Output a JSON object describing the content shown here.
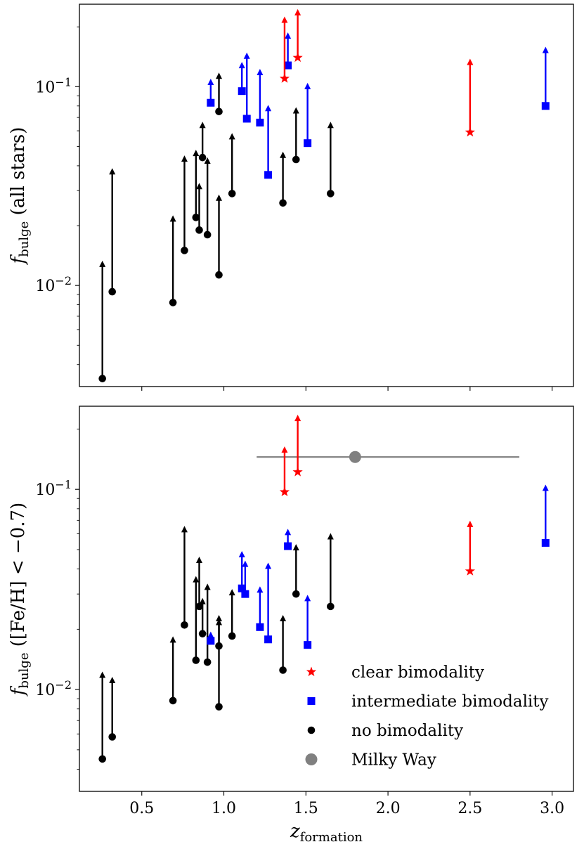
{
  "chart_data": [
    {
      "panel": "top",
      "type": "scatter",
      "title": "",
      "ylabel": {
        "main": "f",
        "sub": "bulge",
        "rest": " (all stars)"
      },
      "xlabel": "",
      "yscale": "log",
      "xlim": [
        0.12,
        3.13
      ],
      "ylim": [
        0.0031,
        0.26
      ],
      "yticks": [
        {
          "value": 0.01,
          "base": "10",
          "exp": "−2"
        },
        {
          "value": 0.1,
          "base": "10",
          "exp": "−1"
        }
      ],
      "show_xtick_labels": false,
      "series": [
        {
          "name": "clear bimodality",
          "color": "#ff0000",
          "marker": "star",
          "points": [
            {
              "x": 1.37,
              "y": 0.11,
              "upper": 0.22
            },
            {
              "x": 1.45,
              "y": 0.14,
              "upper": 0.24
            },
            {
              "x": 2.5,
              "y": 0.059,
              "upper": 0.135
            }
          ]
        },
        {
          "name": "intermediate bimodality",
          "color": "#0000ff",
          "marker": "square",
          "points": [
            {
              "x": 0.92,
              "y": 0.083,
              "upper": 0.107
            },
            {
              "x": 1.11,
              "y": 0.095,
              "upper": 0.13
            },
            {
              "x": 1.14,
              "y": 0.069,
              "upper": 0.145
            },
            {
              "x": 1.22,
              "y": 0.066,
              "upper": 0.12
            },
            {
              "x": 1.27,
              "y": 0.036,
              "upper": 0.079
            },
            {
              "x": 1.39,
              "y": 0.128,
              "upper": 0.183
            },
            {
              "x": 1.51,
              "y": 0.052,
              "upper": 0.102
            },
            {
              "x": 2.96,
              "y": 0.08,
              "upper": 0.155
            }
          ]
        },
        {
          "name": "no bimodality",
          "color": "#000000",
          "marker": "circle",
          "points": [
            {
              "x": 0.26,
              "y": 0.0034,
              "upper": 0.013
            },
            {
              "x": 0.32,
              "y": 0.0093,
              "upper": 0.038
            },
            {
              "x": 0.69,
              "y": 0.0082,
              "upper": 0.022
            },
            {
              "x": 0.76,
              "y": 0.015,
              "upper": 0.044
            },
            {
              "x": 0.83,
              "y": 0.022,
              "upper": 0.047
            },
            {
              "x": 0.85,
              "y": 0.019,
              "upper": 0.032
            },
            {
              "x": 0.87,
              "y": 0.044,
              "upper": 0.065
            },
            {
              "x": 0.9,
              "y": 0.018,
              "upper": 0.043
            },
            {
              "x": 0.97,
              "y": 0.075,
              "upper": 0.115
            },
            {
              "x": 0.97,
              "y": 0.0113,
              "upper": 0.028
            },
            {
              "x": 1.05,
              "y": 0.029,
              "upper": 0.057
            },
            {
              "x": 1.36,
              "y": 0.026,
              "upper": 0.046
            },
            {
              "x": 1.44,
              "y": 0.043,
              "upper": 0.077
            },
            {
              "x": 1.65,
              "y": 0.029,
              "upper": 0.065
            }
          ]
        }
      ]
    },
    {
      "panel": "bottom",
      "type": "scatter",
      "title": "",
      "ylabel": {
        "main": "f",
        "sub": "bulge",
        "rest": " ([Fe/H] < −0.7)"
      },
      "xlabel": {
        "main": "z",
        "sub": "formation"
      },
      "yscale": "log",
      "xlim": [
        0.12,
        3.13
      ],
      "ylim": [
        0.0031,
        0.26
      ],
      "xticks": [
        {
          "value": 0.5,
          "label": "0.5"
        },
        {
          "value": 1.0,
          "label": "1.0"
        },
        {
          "value": 1.5,
          "label": "1.5"
        },
        {
          "value": 2.0,
          "label": "2.0"
        },
        {
          "value": 2.5,
          "label": "2.5"
        },
        {
          "value": 3.0,
          "label": "3.0"
        }
      ],
      "yticks": [
        {
          "value": 0.01,
          "base": "10",
          "exp": "−2"
        },
        {
          "value": 0.1,
          "base": "10",
          "exp": "−1"
        }
      ],
      "legend": {
        "position": "lower-right",
        "entries": [
          {
            "label": "clear bimodality",
            "color": "#ff0000",
            "marker": "star"
          },
          {
            "label": "intermediate bimodality",
            "color": "#0000ff",
            "marker": "square"
          },
          {
            "label": "no bimodality",
            "color": "#000000",
            "marker": "circle"
          },
          {
            "label": "Milky Way",
            "color": "#808080",
            "marker": "bigcircle"
          }
        ]
      },
      "milky_way": {
        "name": "Milky Way",
        "color": "#808080",
        "x": 1.8,
        "y": 0.145,
        "xerr": [
          1.2,
          2.8
        ]
      },
      "series": [
        {
          "name": "clear bimodality",
          "color": "#ff0000",
          "marker": "star",
          "points": [
            {
              "x": 1.37,
              "y": 0.097,
              "upper": 0.16
            },
            {
              "x": 1.45,
              "y": 0.122,
              "upper": 0.23
            },
            {
              "x": 2.5,
              "y": 0.039,
              "upper": 0.068
            }
          ]
        },
        {
          "name": "intermediate bimodality",
          "color": "#0000ff",
          "marker": "square",
          "points": [
            {
              "x": 0.92,
              "y": 0.0175,
              "upper": 0.019
            },
            {
              "x": 1.11,
              "y": 0.032,
              "upper": 0.048
            },
            {
              "x": 1.13,
              "y": 0.03,
              "upper": 0.043
            },
            {
              "x": 1.22,
              "y": 0.0205,
              "upper": 0.032
            },
            {
              "x": 1.27,
              "y": 0.0178,
              "upper": 0.042
            },
            {
              "x": 1.39,
              "y": 0.052,
              "upper": 0.062
            },
            {
              "x": 1.51,
              "y": 0.0167,
              "upper": 0.029
            },
            {
              "x": 2.96,
              "y": 0.054,
              "upper": 0.103
            }
          ]
        },
        {
          "name": "no bimodality",
          "color": "#000000",
          "marker": "circle",
          "points": [
            {
              "x": 0.26,
              "y": 0.0045,
              "upper": 0.012
            },
            {
              "x": 0.32,
              "y": 0.0058,
              "upper": 0.0113
            },
            {
              "x": 0.69,
              "y": 0.0088,
              "upper": 0.018
            },
            {
              "x": 0.76,
              "y": 0.021,
              "upper": 0.064
            },
            {
              "x": 0.83,
              "y": 0.014,
              "upper": 0.036
            },
            {
              "x": 0.85,
              "y": 0.026,
              "upper": 0.045
            },
            {
              "x": 0.87,
              "y": 0.019,
              "upper": 0.028
            },
            {
              "x": 0.9,
              "y": 0.0137,
              "upper": 0.033
            },
            {
              "x": 0.97,
              "y": 0.0165,
              "upper": 0.023
            },
            {
              "x": 0.97,
              "y": 0.0082,
              "upper": 0.022
            },
            {
              "x": 1.05,
              "y": 0.0185,
              "upper": 0.031
            },
            {
              "x": 1.36,
              "y": 0.0125,
              "upper": 0.023
            },
            {
              "x": 1.44,
              "y": 0.03,
              "upper": 0.052
            },
            {
              "x": 1.65,
              "y": 0.026,
              "upper": 0.059
            }
          ]
        }
      ]
    }
  ]
}
